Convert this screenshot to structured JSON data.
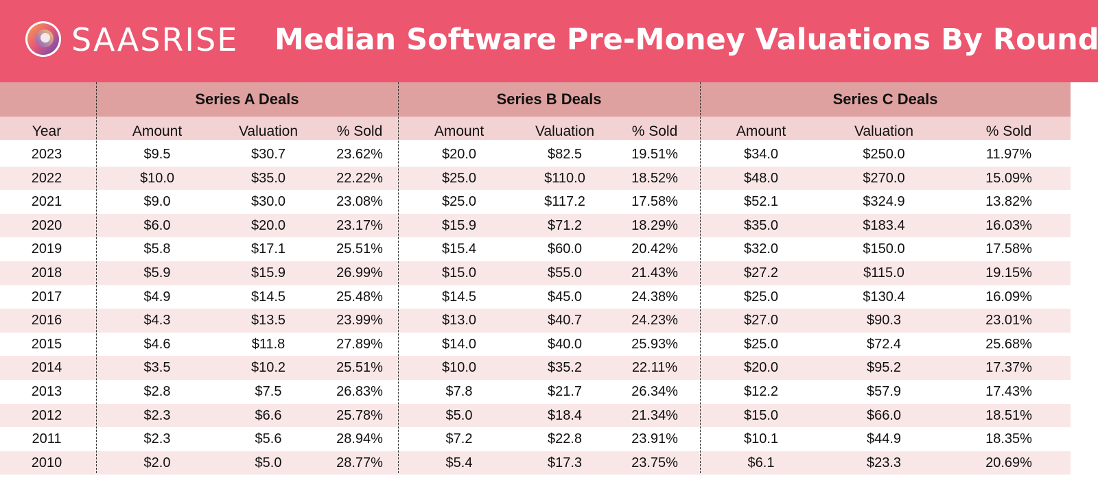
{
  "header": {
    "brand": "SAASRISE",
    "title": "Median Software Pre-Money Valuations By Round",
    "background_color": "#ec566e",
    "logo_icon": "gradient-ring-logo-icon"
  },
  "colors": {
    "group_header_band": "#dfa0a0",
    "column_header_band": "#f2d2d2",
    "alt_row": "#f9e7e8",
    "row": "#ffffff"
  },
  "chart_data": {
    "type": "table",
    "title": "Median Software Pre-Money Valuations By Round",
    "groups": [
      "Series A Deals",
      "Series B Deals",
      "Series C Deals"
    ],
    "columns": [
      "Year",
      "Amount",
      "Valuation",
      "% Sold",
      "Amount",
      "Valuation",
      "% Sold",
      "Amount",
      "Valuation",
      "% Sold"
    ],
    "rows": [
      [
        "2023",
        "$9.5",
        "$30.7",
        "23.62%",
        "$20.0",
        "$82.5",
        "19.51%",
        "$34.0",
        "$250.0",
        "11.97%"
      ],
      [
        "2022",
        "$10.0",
        "$35.0",
        "22.22%",
        "$25.0",
        "$110.0",
        "18.52%",
        "$48.0",
        "$270.0",
        "15.09%"
      ],
      [
        "2021",
        "$9.0",
        "$30.0",
        "23.08%",
        "$25.0",
        "$117.2",
        "17.58%",
        "$52.1",
        "$324.9",
        "13.82%"
      ],
      [
        "2020",
        "$6.0",
        "$20.0",
        "23.17%",
        "$15.9",
        "$71.2",
        "18.29%",
        "$35.0",
        "$183.4",
        "16.03%"
      ],
      [
        "2019",
        "$5.8",
        "$17.1",
        "25.51%",
        "$15.4",
        "$60.0",
        "20.42%",
        "$32.0",
        "$150.0",
        "17.58%"
      ],
      [
        "2018",
        "$5.9",
        "$15.9",
        "26.99%",
        "$15.0",
        "$55.0",
        "21.43%",
        "$27.2",
        "$115.0",
        "19.15%"
      ],
      [
        "2017",
        "$4.9",
        "$14.5",
        "25.48%",
        "$14.5",
        "$45.0",
        "24.38%",
        "$25.0",
        "$130.4",
        "16.09%"
      ],
      [
        "2016",
        "$4.3",
        "$13.5",
        "23.99%",
        "$13.0",
        "$40.7",
        "24.23%",
        "$27.0",
        "$90.3",
        "23.01%"
      ],
      [
        "2015",
        "$4.6",
        "$11.8",
        "27.89%",
        "$14.0",
        "$40.0",
        "25.93%",
        "$25.0",
        "$72.4",
        "25.68%"
      ],
      [
        "2014",
        "$3.5",
        "$10.2",
        "25.51%",
        "$10.0",
        "$35.2",
        "22.11%",
        "$20.0",
        "$95.2",
        "17.37%"
      ],
      [
        "2013",
        "$2.8",
        "$7.5",
        "26.83%",
        "$7.8",
        "$21.7",
        "26.34%",
        "$12.2",
        "$57.9",
        "17.43%"
      ],
      [
        "2012",
        "$2.3",
        "$6.6",
        "25.78%",
        "$5.0",
        "$18.4",
        "21.34%",
        "$15.0",
        "$66.0",
        "18.51%"
      ],
      [
        "2011",
        "$2.3",
        "$5.6",
        "28.94%",
        "$7.2",
        "$22.8",
        "23.91%",
        "$10.1",
        "$44.9",
        "18.35%"
      ],
      [
        "2010",
        "$2.0",
        "$5.0",
        "28.77%",
        "$5.4",
        "$17.3",
        "23.75%",
        "$6.1",
        "$23.3",
        "20.69%"
      ]
    ]
  }
}
